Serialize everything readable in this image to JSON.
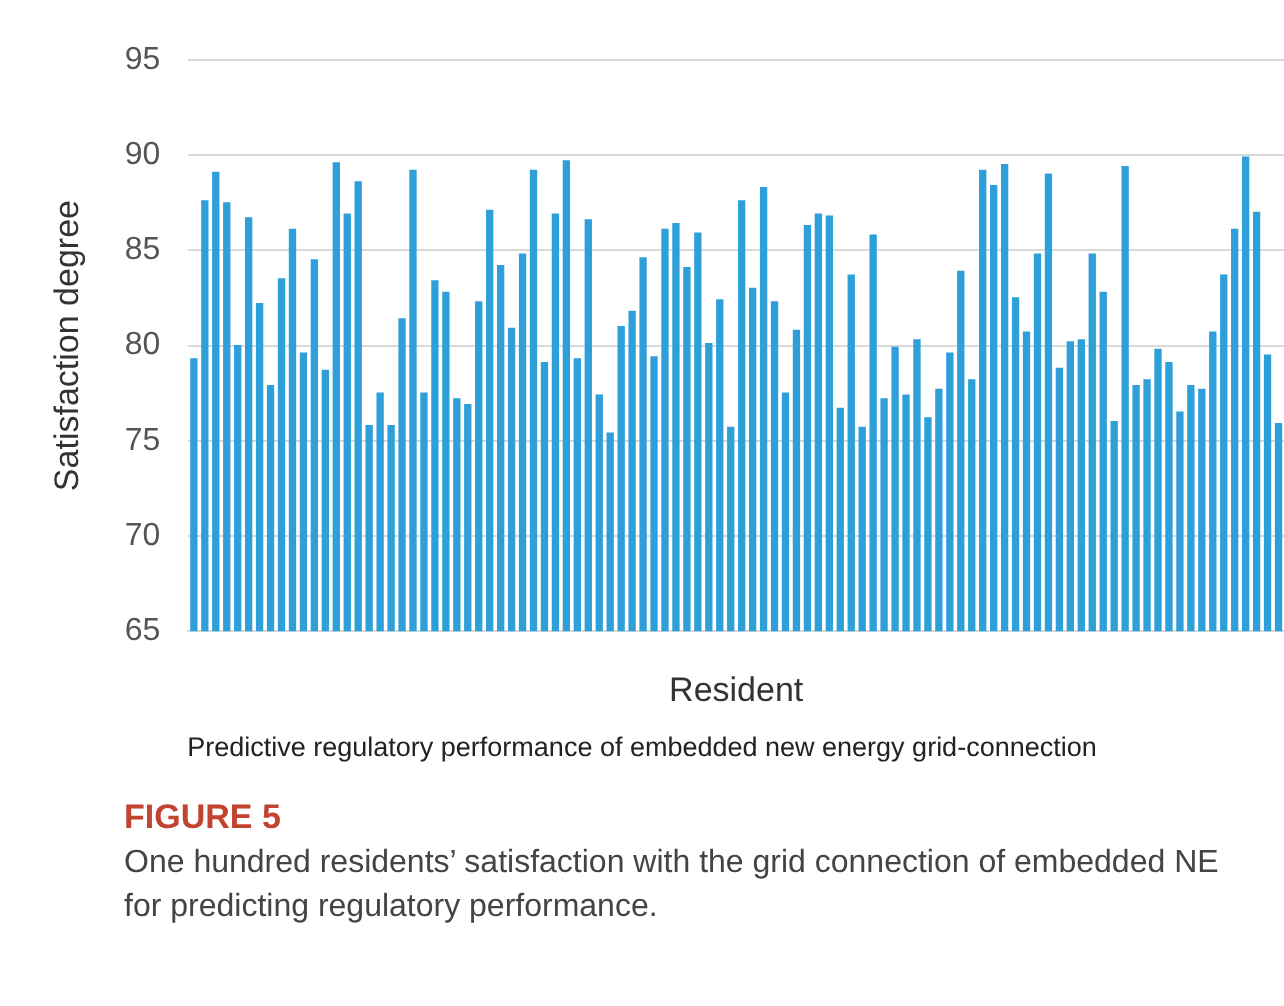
{
  "chart_data": {
    "type": "bar",
    "ylabel": "Satisfaction degree",
    "xlabel": "Resident",
    "annotations": [
      "Predictive regulatory performance of embedded new energy grid-connection",
      "FIGURE 5",
      "One hundred residents’ satisfaction with the grid connection of embedded NE for predicting regulatory performance."
    ],
    "categories": [
      null,
      null,
      null,
      null,
      null,
      null,
      null,
      null,
      null,
      null,
      null,
      null,
      null,
      null,
      null,
      null,
      null,
      null,
      null,
      null,
      null,
      null,
      null,
      null,
      null,
      null,
      null,
      null,
      null,
      null,
      null,
      null,
      null,
      null,
      null,
      null,
      null,
      null,
      null,
      null,
      null,
      null,
      null,
      null,
      null,
      null,
      null,
      null,
      null,
      null,
      null,
      null,
      null,
      null,
      null,
      null,
      null,
      null,
      null,
      null,
      null,
      null,
      null,
      null,
      null,
      null,
      null,
      null,
      null,
      null,
      null,
      null,
      null,
      null,
      null,
      null,
      null,
      null,
      null,
      null,
      null,
      null,
      null,
      null,
      null,
      null,
      null,
      null,
      null,
      null,
      null,
      null,
      null,
      null,
      null,
      null,
      null,
      null,
      null,
      null
    ],
    "values": [
      79.3,
      87.6,
      89.1,
      87.5,
      80.0,
      86.7,
      82.2,
      77.9,
      83.5,
      86.1,
      79.6,
      84.5,
      78.7,
      89.6,
      86.9,
      88.6,
      75.8,
      77.5,
      75.8,
      81.4,
      89.2,
      77.5,
      83.4,
      82.8,
      77.2,
      76.9,
      82.3,
      87.1,
      84.2,
      80.9,
      84.8,
      89.2,
      79.1,
      86.9,
      89.7,
      79.3,
      86.6,
      77.4,
      75.4,
      81.0,
      81.8,
      84.6,
      79.4,
      86.1,
      86.4,
      84.1,
      85.9,
      80.1,
      82.4,
      75.7,
      87.6,
      83.0,
      88.3,
      82.3,
      77.5,
      80.8,
      86.3,
      86.9,
      86.8,
      76.7,
      83.7,
      75.7,
      85.8,
      77.2,
      79.9,
      77.4,
      80.3,
      76.2,
      77.7,
      79.6,
      83.9,
      78.2,
      89.2,
      88.4,
      89.5,
      82.5,
      80.7,
      84.8,
      89.0,
      78.8,
      80.2,
      80.3,
      84.8,
      82.8,
      76.0,
      89.4,
      77.9,
      78.2,
      79.8,
      79.1,
      76.5,
      77.9,
      77.7,
      80.7,
      83.7,
      86.1,
      89.9,
      87.0,
      79.5,
      75.9
    ],
    "color": "#2e9fd9",
    "ylim": [
      65,
      95
    ],
    "yticks": [
      65,
      70,
      75,
      80,
      85,
      90,
      95
    ],
    "grid": "y",
    "legend": false,
    "tick_labels": "y"
  }
}
